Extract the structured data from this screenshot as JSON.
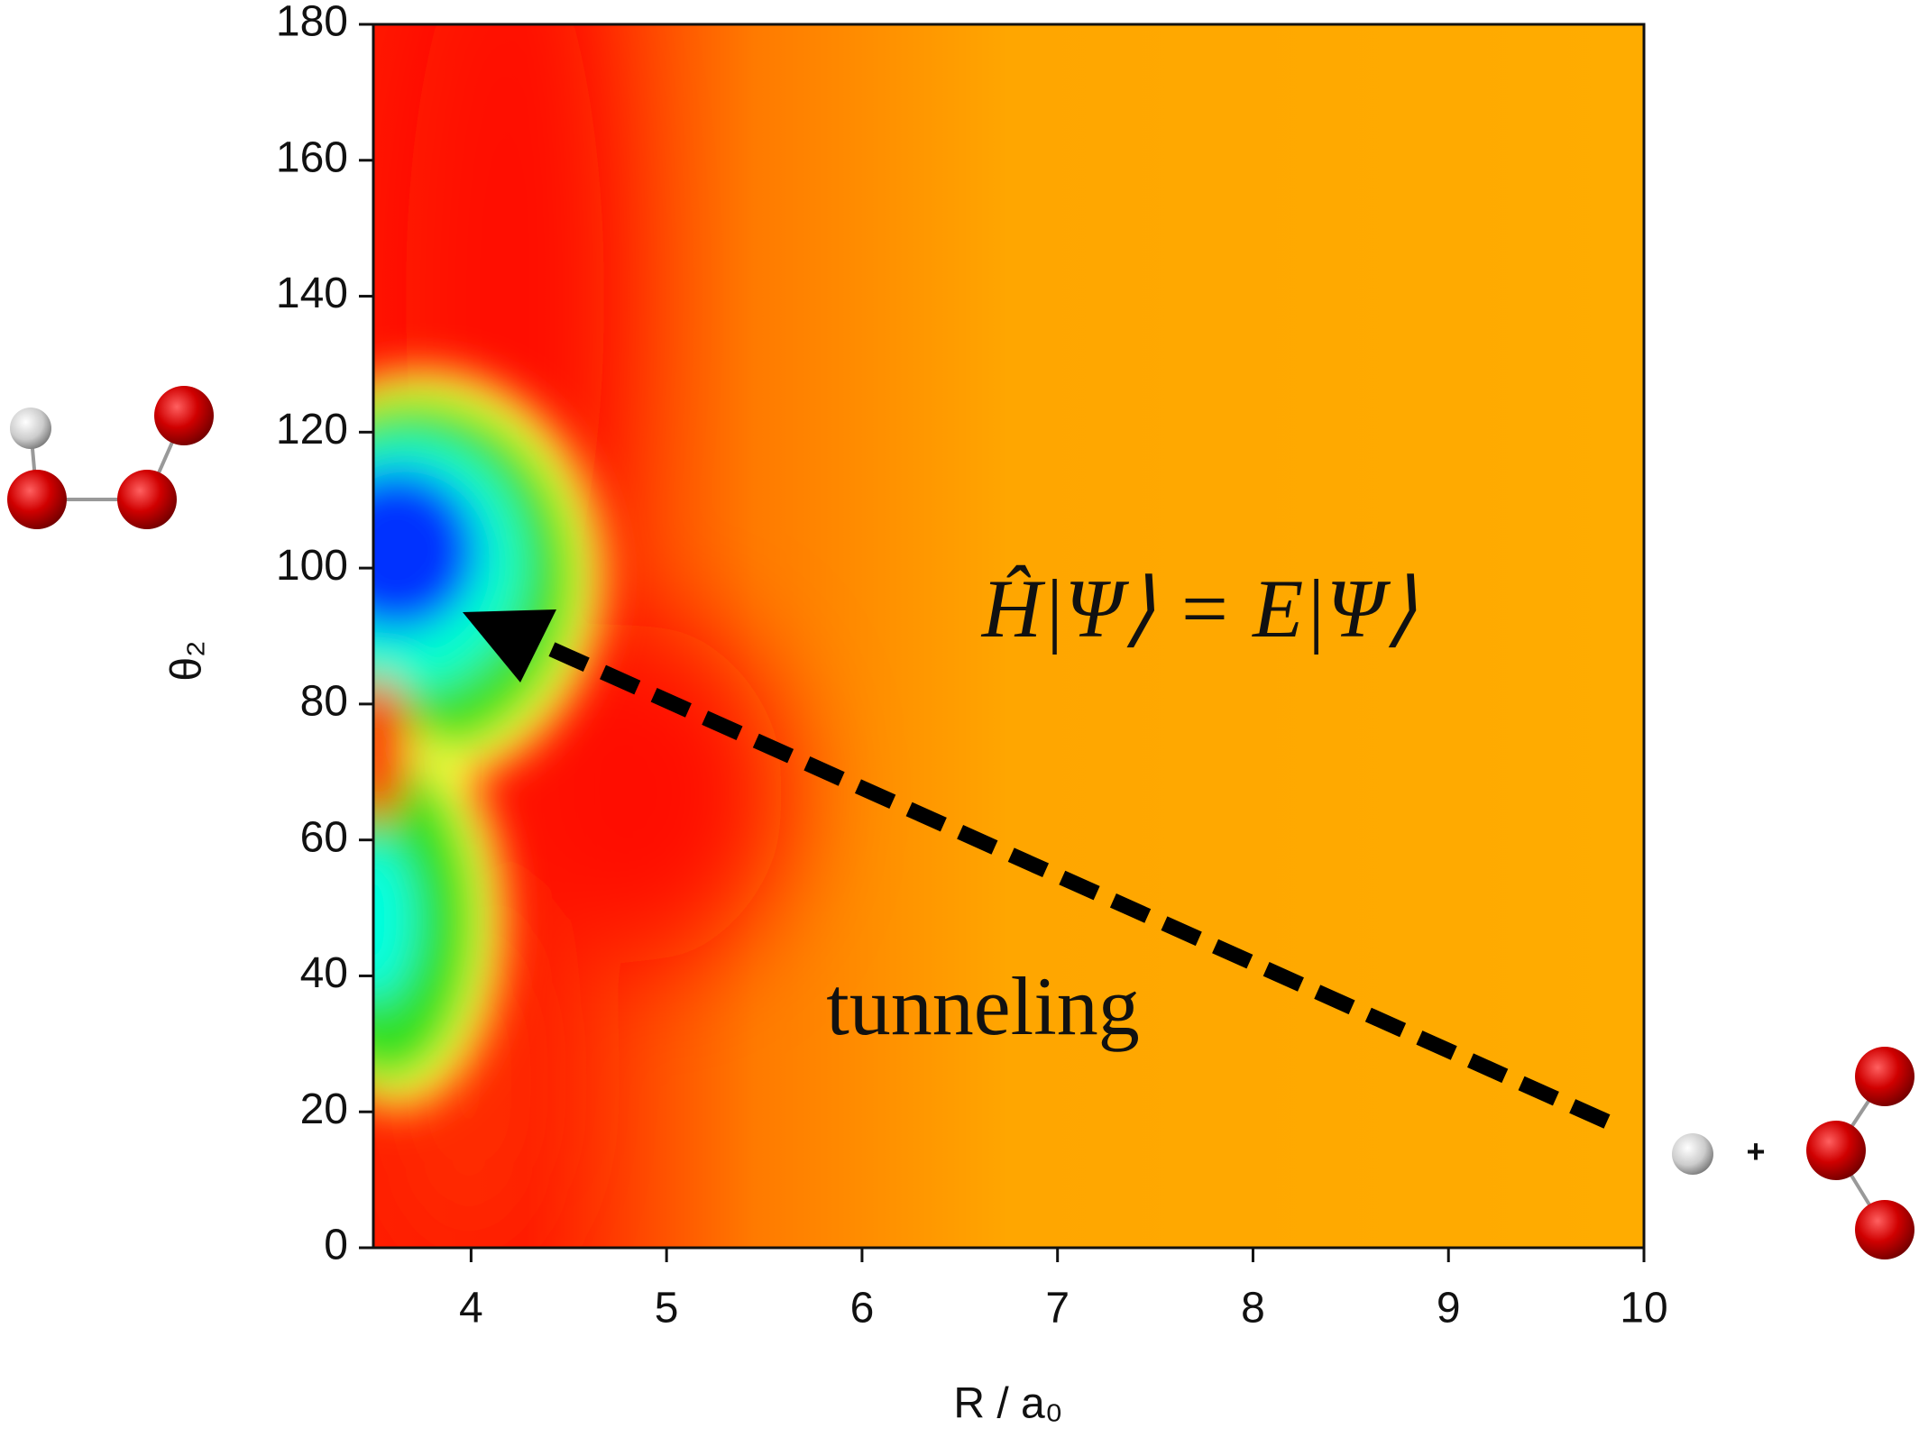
{
  "chart_data": {
    "type": "heatmap",
    "x_label": "R / a₀",
    "y_label": "θ₂",
    "xlim": [
      3.5,
      10
    ],
    "xticks": [
      4,
      5,
      6,
      7,
      8,
      9,
      10
    ],
    "ylim": [
      0,
      180
    ],
    "yticks": [
      0,
      20,
      40,
      60,
      80,
      100,
      120,
      140,
      160,
      180
    ],
    "annotations": [
      "Ĥ|Ψ⟩ = E|Ψ⟩",
      "tunneling",
      "+"
    ]
  }
}
